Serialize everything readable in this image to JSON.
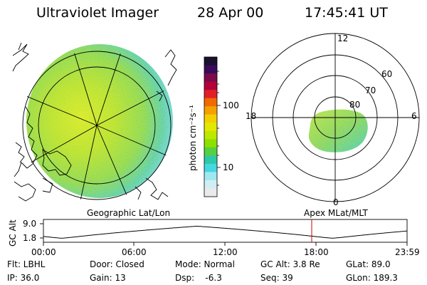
{
  "header": {
    "title": "Ultraviolet Imager",
    "date": "28 Apr 00",
    "time": "17:45:41 UT"
  },
  "colorbar": {
    "label": "photon cm⁻²s⁻¹",
    "ticks": [
      "100",
      "10"
    ],
    "colors": [
      "#1a1030",
      "#3a0a5a",
      "#7a0a4a",
      "#b4003a",
      "#e0202a",
      "#f06a00",
      "#f5a000",
      "#f2d000",
      "#e4e800",
      "#bde800",
      "#8ee000",
      "#55d040",
      "#2fc8a8",
      "#45d8e0",
      "#9fe8f0",
      "#cfeff5",
      "#eaeaea"
    ]
  },
  "left_map": {
    "caption": "Geographic Lat/Lon"
  },
  "polar_plot": {
    "caption": "Apex MLat/MLT",
    "ring_labels": [
      "60",
      "70",
      "80"
    ],
    "mlt_labels": {
      "top": "12",
      "left": "18",
      "right": "6",
      "bottom": "0"
    }
  },
  "orbit": {
    "ylabel": "GC Alt",
    "y_ticks": [
      "9.0",
      "1.8"
    ],
    "x_ticks": [
      "00:00",
      "06:00",
      "12:00",
      "18:00",
      "23:59"
    ],
    "curve_color": "#000000",
    "marker_color": "#cc0000"
  },
  "footer": {
    "row1": [
      {
        "name": "flt",
        "text": "Flt: LBHL"
      },
      {
        "name": "door",
        "text": "Door: Closed"
      },
      {
        "name": "mode",
        "text": "Mode: Normal"
      },
      {
        "name": "gc-alt",
        "text": "GC Alt: 3.8 Re"
      },
      {
        "name": "glat",
        "text": "GLat: 89.0"
      }
    ],
    "row2": [
      {
        "name": "ip",
        "text": "IP: 36.0"
      },
      {
        "name": "gain",
        "text": "Gain: 13"
      },
      {
        "name": "dsp",
        "text": "Dsp:    -6.3"
      },
      {
        "name": "seq",
        "text": "Seq: 39"
      },
      {
        "name": "glon",
        "text": "GLon: 189.3"
      }
    ]
  }
}
